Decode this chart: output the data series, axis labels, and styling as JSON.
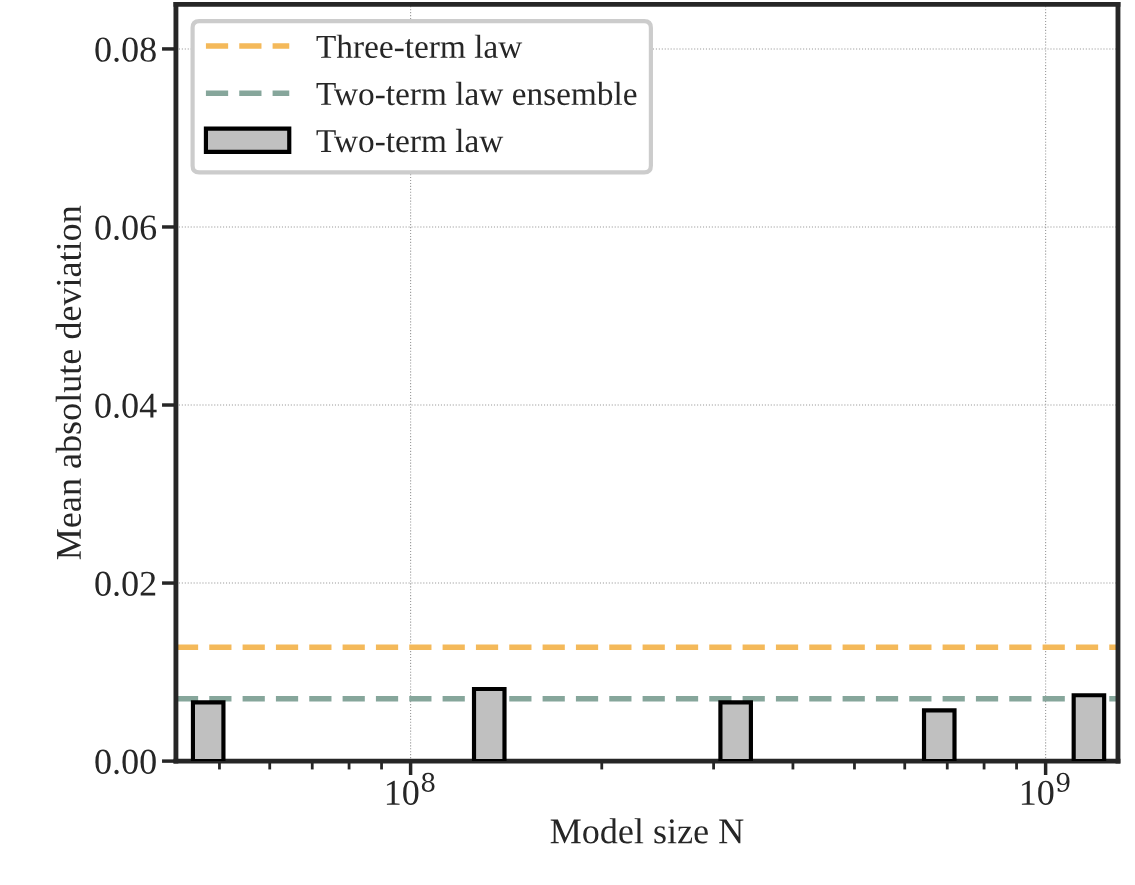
{
  "chart_data": {
    "type": "bar",
    "xlabel": "Model size N",
    "ylabel": "Mean absolute deviation",
    "x": [
      48000000.0,
      133000000.0,
      325000000.0,
      680000000.0,
      1170000000.0
    ],
    "series": [
      {
        "name": "Two-term law",
        "color": "#c0c0c0",
        "values": [
          0.0066,
          0.0081,
          0.0066,
          0.0057,
          0.0074
        ]
      }
    ],
    "ref_lines": [
      {
        "axis": "y",
        "value": 0.0128,
        "label": "Three-term law",
        "color": "#f4b95a",
        "line_style": "dashed"
      },
      {
        "axis": "y",
        "value": 0.007,
        "label": "Two-term law ensemble",
        "color": "#86a69b",
        "line_style": "dashed"
      }
    ],
    "log": "x",
    "xlim": [
      42700000.0,
      1300000000.0
    ],
    "xticks": [
      {
        "value": 100000000,
        "label": "10$^{8}$"
      },
      {
        "value": 1000000000,
        "label": "10$^{9}$"
      }
    ],
    "ylim": [
      0,
      0.085
    ],
    "yticks": [
      {
        "value": 0,
        "label": "0.00"
      },
      {
        "value": 0.02,
        "label": "0.02"
      },
      {
        "value": 0.04,
        "label": "0.04"
      },
      {
        "value": 0.06,
        "label": "0.06"
      },
      {
        "value": 0.08,
        "label": "0.08"
      }
    ],
    "grid": true,
    "legend": "top left"
  }
}
